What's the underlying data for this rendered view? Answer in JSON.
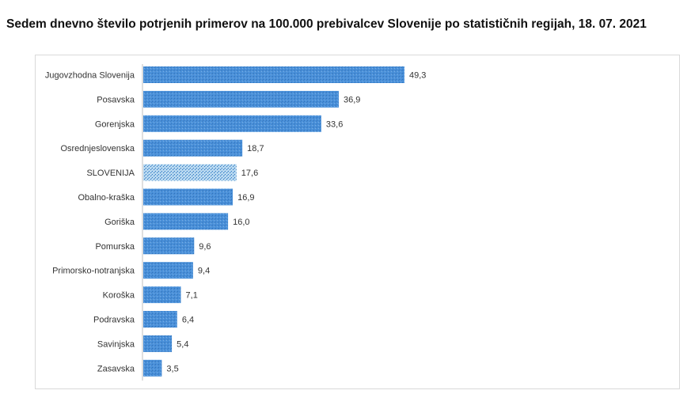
{
  "chart_data": {
    "type": "bar",
    "orientation": "horizontal",
    "title": "Sedem dnevno število potrjenih primerov na 100.000 prebivalcev Slovenije po statističnih regijah, 18. 07. 2021",
    "xlabel": "",
    "ylabel": "",
    "categories": [
      "Jugovzhodna Slovenija",
      "Posavska",
      "Gorenjska",
      "Osrednjeslovenska",
      "SLOVENIJA",
      "Obalno-kraška",
      "Goriška",
      "Pomurska",
      "Primorsko-notranjska",
      "Koroška",
      "Podravska",
      "Savinjska",
      "Zasavska"
    ],
    "values": [
      49.3,
      36.9,
      33.6,
      18.7,
      17.6,
      16.9,
      16.0,
      9.6,
      9.4,
      7.1,
      6.4,
      5.4,
      3.5
    ],
    "value_labels": [
      "49,3",
      "36,9",
      "33,6",
      "18,7",
      "17,6",
      "16,9",
      "16,0",
      "9,6",
      "9,4",
      "7,1",
      "6,4",
      "5,4",
      "3,5"
    ],
    "highlight_category": "SLOVENIJA",
    "xlim": [
      0,
      60
    ],
    "grid": false,
    "legend": "none",
    "colors": {
      "bar": "#4a90d9",
      "bar_texture": "#2f6fb5",
      "highlight_bar": "#b8d8f0",
      "highlight_texture": "#2f78bf"
    }
  }
}
